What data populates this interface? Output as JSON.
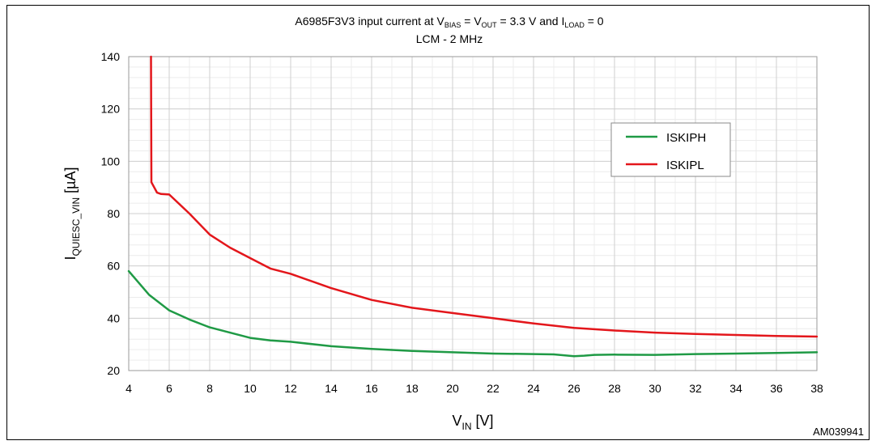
{
  "chart_data": {
    "type": "line",
    "title_parts": {
      "main": "A6985F3V3 input current at V",
      "sub1": "BIAS",
      "eq1": " = V",
      "sub2": "OUT",
      "eq2": " = 3.3 V and I",
      "sub3": "LOAD",
      "eq3": " = 0"
    },
    "subtitle": "LCM - 2 MHz",
    "xlabel": {
      "main": "V",
      "sub": "IN",
      "unit": " [V]"
    },
    "ylabel": {
      "main": "I",
      "sub": "QUIESC_VIN",
      "unit": " [µA]"
    },
    "xlim": [
      4,
      38
    ],
    "ylim": [
      20,
      140
    ],
    "x_ticks": [
      4,
      6,
      8,
      10,
      12,
      14,
      16,
      18,
      20,
      22,
      24,
      26,
      28,
      30,
      32,
      34,
      36,
      38
    ],
    "y_ticks": [
      20,
      40,
      60,
      80,
      100,
      120,
      140
    ],
    "grid": true,
    "legend_position": "right",
    "series": [
      {
        "name": "ISKIPH",
        "color": "#1f9a45",
        "points": [
          [
            4,
            58
          ],
          [
            5,
            49
          ],
          [
            6,
            43
          ],
          [
            7,
            39.5
          ],
          [
            8,
            36.5
          ],
          [
            9,
            34.5
          ],
          [
            10,
            32.5
          ],
          [
            11,
            31.5
          ],
          [
            12,
            31
          ],
          [
            14,
            29.3
          ],
          [
            16,
            28.3
          ],
          [
            18,
            27.5
          ],
          [
            20,
            27
          ],
          [
            22,
            26.5
          ],
          [
            24,
            26.3
          ],
          [
            25,
            26.2
          ],
          [
            26,
            25.5
          ],
          [
            26.5,
            25.7
          ],
          [
            27,
            26
          ],
          [
            28,
            26.1
          ],
          [
            30,
            26
          ],
          [
            32,
            26.3
          ],
          [
            34,
            26.5
          ],
          [
            36,
            26.7
          ],
          [
            38,
            27
          ]
        ]
      },
      {
        "name": "ISKIPL",
        "color": "#e3161b",
        "points": [
          [
            5.1,
            140
          ],
          [
            5.12,
            92
          ],
          [
            5.4,
            88
          ],
          [
            5.6,
            87.5
          ],
          [
            6,
            87.3
          ],
          [
            7,
            80
          ],
          [
            8,
            72
          ],
          [
            9,
            67
          ],
          [
            10,
            63
          ],
          [
            11,
            59
          ],
          [
            12,
            57
          ],
          [
            14,
            51.5
          ],
          [
            16,
            47
          ],
          [
            18,
            44
          ],
          [
            20,
            42
          ],
          [
            22,
            40
          ],
          [
            24,
            38
          ],
          [
            26,
            36.3
          ],
          [
            28,
            35.3
          ],
          [
            30,
            34.5
          ],
          [
            32,
            34
          ],
          [
            34,
            33.6
          ],
          [
            36,
            33.2
          ],
          [
            38,
            33
          ]
        ]
      }
    ]
  },
  "figure_id": "AM039941"
}
